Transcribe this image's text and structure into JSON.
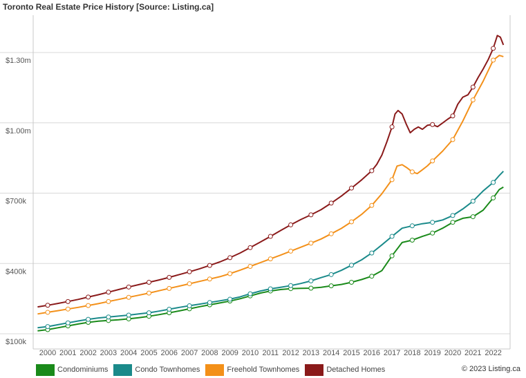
{
  "chart_data": {
    "type": "line",
    "title": "Toronto Real Estate Price History [Source: Listing.ca]",
    "credit": "© 2023 Listing.ca",
    "xlabel": "",
    "ylabel": "",
    "ylim": [
      100000,
      1450000
    ],
    "y_ticks": [
      {
        "value": 100000,
        "label": "$100k"
      },
      {
        "value": 400000,
        "label": "$400k"
      },
      {
        "value": 700000,
        "label": "$700k"
      },
      {
        "value": 1000000,
        "label": "$1.00m"
      },
      {
        "value": 1300000,
        "label": "$1.30m"
      }
    ],
    "x_ticks": [
      "2000",
      "2001",
      "2002",
      "2003",
      "2004",
      "2005",
      "2006",
      "2007",
      "2008",
      "2009",
      "2010",
      "2011",
      "2012",
      "2013",
      "2014",
      "2015",
      "2016",
      "2017",
      "2018",
      "2019",
      "2020",
      "2021",
      "2022"
    ],
    "xlim": [
      1999.3,
      2023.0
    ],
    "grid": "horizontal",
    "legend_position": "bottom",
    "series": [
      {
        "name": "Condominiums",
        "color": "#1a8a1a",
        "x": [
          1999.5,
          2000.0,
          2000.5,
          2001.0,
          2001.5,
          2002.0,
          2002.5,
          2003.0,
          2003.5,
          2004.0,
          2004.5,
          2005.0,
          2005.5,
          2006.0,
          2006.5,
          2007.0,
          2007.5,
          2008.0,
          2008.5,
          2009.0,
          2009.5,
          2010.0,
          2010.5,
          2011.0,
          2011.5,
          2012.0,
          2012.5,
          2013.0,
          2013.5,
          2014.0,
          2014.5,
          2015.0,
          2015.5,
          2016.0,
          2016.5,
          2017.0,
          2017.5,
          2018.0,
          2018.5,
          2019.0,
          2019.5,
          2020.0,
          2020.5,
          2021.0,
          2021.5,
          2022.0,
          2022.3,
          2022.5
        ],
        "values": [
          145000,
          150000,
          158000,
          166000,
          174000,
          181000,
          186000,
          189000,
          192000,
          196000,
          201000,
          207000,
          214000,
          222000,
          230000,
          239000,
          248000,
          256000,
          264000,
          272000,
          282000,
          294000,
          306000,
          315000,
          321000,
          325000,
          326000,
          327000,
          331000,
          337000,
          343000,
          352000,
          364000,
          378000,
          402000,
          465000,
          522000,
          532000,
          548000,
          562000,
          583000,
          608000,
          625000,
          632000,
          660000,
          712000,
          748000,
          758000
        ]
      },
      {
        "name": "Condo Townhomes",
        "color": "#1a8a8a",
        "x": [
          1999.5,
          2000.0,
          2000.5,
          2001.0,
          2001.5,
          2002.0,
          2002.5,
          2003.0,
          2003.5,
          2004.0,
          2004.5,
          2005.0,
          2005.5,
          2006.0,
          2006.5,
          2007.0,
          2007.5,
          2008.0,
          2008.5,
          2009.0,
          2009.5,
          2010.0,
          2010.5,
          2011.0,
          2011.5,
          2012.0,
          2012.5,
          2013.0,
          2013.5,
          2014.0,
          2014.5,
          2015.0,
          2015.5,
          2016.0,
          2016.5,
          2017.0,
          2017.5,
          2018.0,
          2018.5,
          2019.0,
          2019.5,
          2020.0,
          2020.5,
          2021.0,
          2021.5,
          2022.0,
          2022.3,
          2022.5
        ],
        "values": [
          158000,
          163000,
          171000,
          179000,
          187000,
          194000,
          200000,
          204000,
          208000,
          212000,
          217000,
          222000,
          229000,
          237000,
          245000,
          252000,
          259000,
          266000,
          273000,
          280000,
          290000,
          303000,
          315000,
          324000,
          331000,
          338000,
          347000,
          358000,
          372000,
          385000,
          403000,
          425000,
          448000,
          477000,
          512000,
          548000,
          583000,
          593000,
          602000,
          608000,
          618000,
          637000,
          665000,
          698000,
          742000,
          778000,
          808000,
          826000
        ]
      },
      {
        "name": "Freehold Townhomes",
        "color": "#f39019",
        "x": [
          1999.5,
          2000.0,
          2000.5,
          2001.0,
          2001.5,
          2002.0,
          2002.5,
          2003.0,
          2003.5,
          2004.0,
          2004.5,
          2005.0,
          2005.5,
          2006.0,
          2006.5,
          2007.0,
          2007.5,
          2008.0,
          2008.5,
          2009.0,
          2009.5,
          2010.0,
          2010.5,
          2011.0,
          2011.5,
          2012.0,
          2012.5,
          2013.0,
          2013.5,
          2014.0,
          2014.5,
          2015.0,
          2015.5,
          2016.0,
          2016.5,
          2017.0,
          2017.25,
          2017.5,
          2017.75,
          2018.0,
          2018.25,
          2018.5,
          2018.75,
          2019.0,
          2019.5,
          2020.0,
          2020.5,
          2021.0,
          2021.5,
          2022.0,
          2022.3,
          2022.5
        ],
        "values": [
          217000,
          224000,
          231000,
          238000,
          245000,
          253000,
          261000,
          270000,
          279000,
          288000,
          297000,
          306000,
          316000,
          326000,
          336000,
          346000,
          356000,
          366000,
          376000,
          389000,
          404000,
          420000,
          436000,
          452000,
          468000,
          485000,
          502000,
          519000,
          537000,
          559000,
          582000,
          610000,
          642000,
          680000,
          730000,
          790000,
          848000,
          854000,
          840000,
          823000,
          816000,
          832000,
          849000,
          870000,
          912000,
          961000,
          1040000,
          1130000,
          1210000,
          1300000,
          1320000,
          1315000
        ]
      },
      {
        "name": "Detached Homes",
        "color": "#8a1a1a",
        "x": [
          1999.5,
          2000.0,
          2000.5,
          2001.0,
          2001.5,
          2002.0,
          2002.5,
          2003.0,
          2003.5,
          2004.0,
          2004.5,
          2005.0,
          2005.5,
          2006.0,
          2006.5,
          2007.0,
          2007.5,
          2008.0,
          2008.5,
          2009.0,
          2009.5,
          2010.0,
          2010.5,
          2011.0,
          2011.5,
          2012.0,
          2012.5,
          2013.0,
          2013.5,
          2014.0,
          2014.5,
          2015.0,
          2015.5,
          2016.0,
          2016.25,
          2016.5,
          2016.75,
          2017.0,
          2017.15,
          2017.3,
          2017.5,
          2017.7,
          2017.9,
          2018.1,
          2018.3,
          2018.5,
          2018.75,
          2019.0,
          2019.25,
          2019.5,
          2019.75,
          2020.0,
          2020.25,
          2020.5,
          2020.75,
          2021.0,
          2021.25,
          2021.5,
          2021.75,
          2022.0,
          2022.2,
          2022.35,
          2022.5
        ],
        "values": [
          247000,
          254000,
          262000,
          270000,
          279000,
          289000,
          299000,
          310000,
          321000,
          332000,
          342000,
          352000,
          362000,
          373000,
          385000,
          397000,
          410000,
          424000,
          439000,
          457000,
          477000,
          500000,
          524000,
          548000,
          573000,
          597000,
          620000,
          640000,
          662000,
          690000,
          720000,
          754000,
          789000,
          828000,
          855000,
          895000,
          952000,
          1015000,
          1070000,
          1085000,
          1070000,
          1028000,
          990000,
          1005000,
          1015000,
          1005000,
          1022000,
          1025000,
          1016000,
          1032000,
          1048000,
          1062000,
          1112000,
          1142000,
          1152000,
          1185000,
          1225000,
          1262000,
          1302000,
          1350000,
          1405000,
          1398000,
          1365000
        ]
      }
    ]
  }
}
